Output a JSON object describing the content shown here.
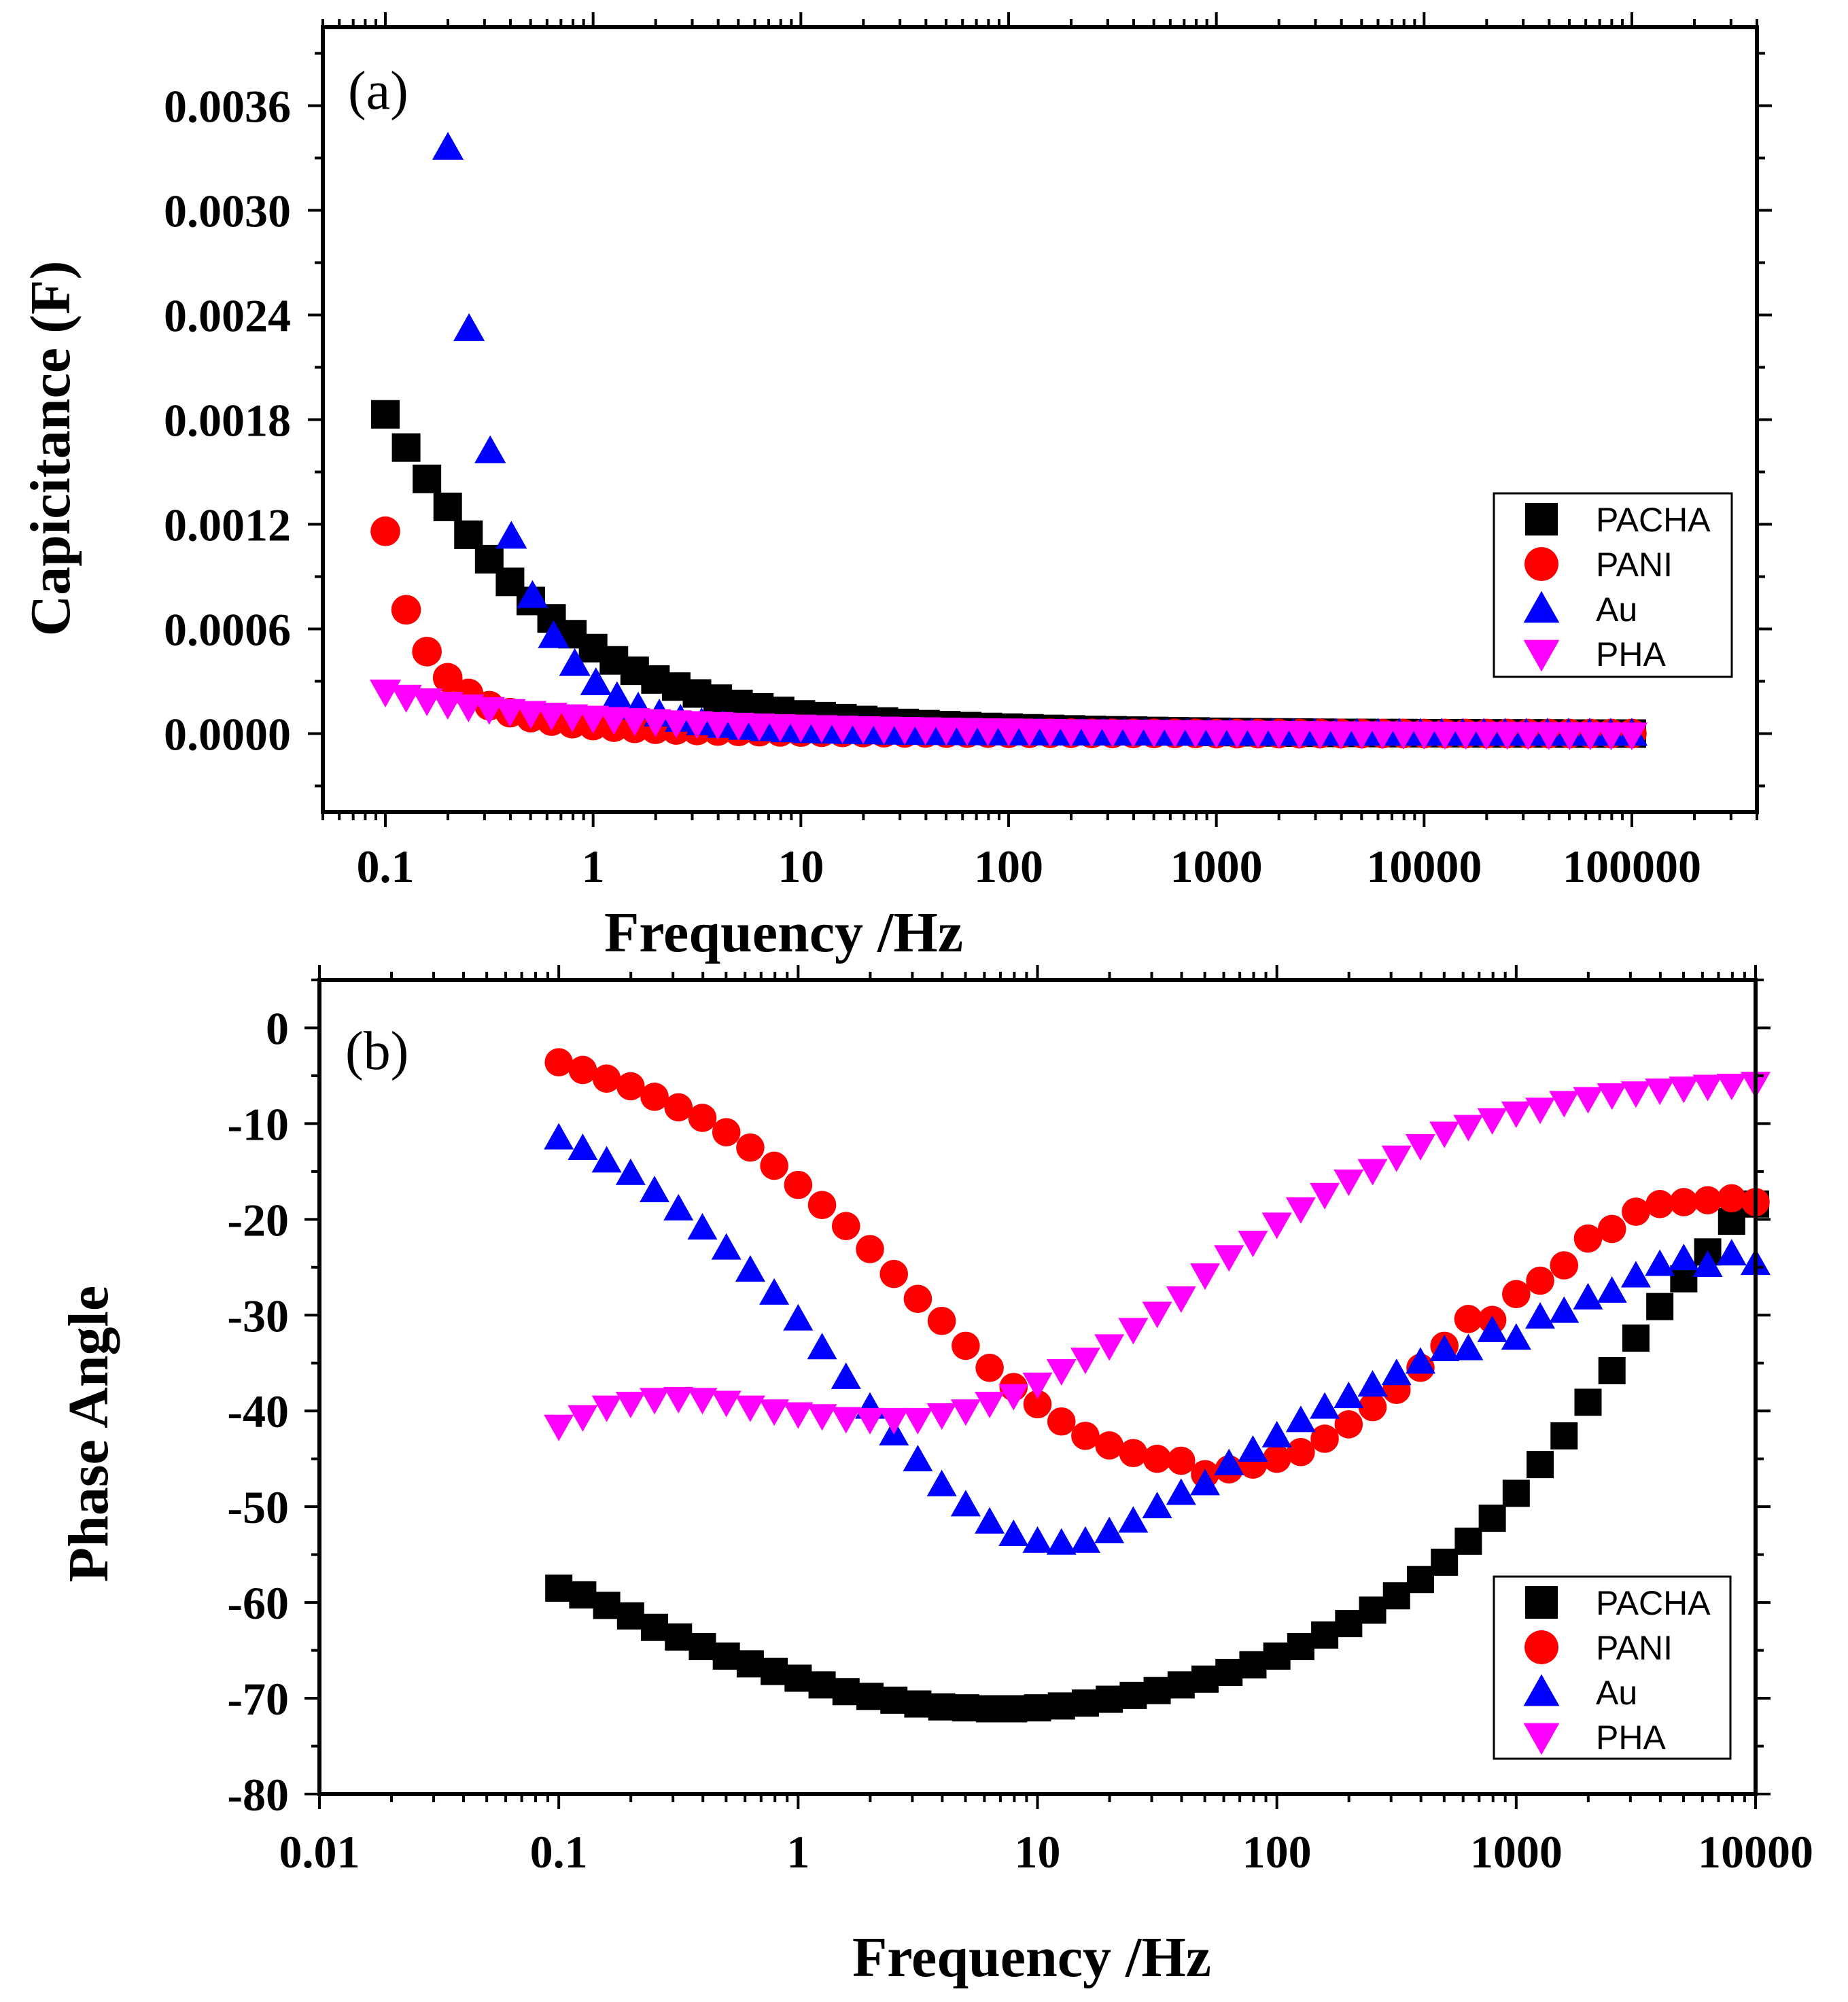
{
  "colors": {
    "PACHA": "#000000",
    "PANI": "#ff0000",
    "Au": "#0000ff",
    "PHA": "#ff00ff"
  },
  "chart_data": [
    {
      "type": "scatter",
      "panel_label": "(a)",
      "xlabel": "Frequency /Hz",
      "ylabel": "Capicitance (F)",
      "xscale": "log",
      "xlim": [
        0.05,
        400000
      ],
      "ylim": [
        -0.00045,
        0.00405
      ],
      "xticks": [
        0.1,
        1,
        10,
        100,
        1000,
        10000,
        100000
      ],
      "xtick_labels": [
        "0.1",
        "1",
        "10",
        "100",
        "1000",
        "10000",
        "100000"
      ],
      "yticks": [
        0,
        0.0006,
        0.0012,
        0.0018,
        0.0024,
        0.003,
        0.0036
      ],
      "ytick_labels": [
        "0.0000",
        "0.0006",
        "0.0012",
        "0.0018",
        "0.0024",
        "0.0030",
        "0.0036"
      ],
      "legend": [
        "PACHA",
        "PANI",
        "Au",
        "PHA"
      ],
      "legend_position": "center-right",
      "series": [
        {
          "name": "PACHA",
          "marker": "square",
          "x_start": 0.1,
          "x_end": 100000,
          "n": 61,
          "values": [
            0.00183,
            0.00164,
            0.00146,
            0.0013,
            0.00114,
            0.001,
            0.00087,
            0.00076,
            0.00066,
            0.00057,
            0.00049,
            0.00042,
            0.00036,
            0.00031,
            0.00027,
            0.00023,
            0.0002,
            0.00017,
            0.00015,
            0.00013,
            0.00011,
            0.0001,
            8.8e-05,
            7.8e-05,
            6.9e-05,
            6.1e-05,
            5.4e-05,
            4.8e-05,
            4.3e-05,
            3.8e-05,
            3.4e-05,
            3e-05,
            2.7e-05,
            2.4e-05,
            2.1e-05,
            1.9e-05,
            1.7e-05,
            1.5e-05,
            1.3e-05,
            1.2e-05,
            1e-05,
            9e-06,
            8e-06,
            7e-06,
            6e-06,
            5e-06,
            4e-06,
            4e-06,
            3e-06,
            3e-06,
            2e-06,
            2e-06,
            2e-06,
            1e-06,
            1e-06,
            1e-06,
            1e-06,
            0,
            0,
            0,
            0
          ]
        },
        {
          "name": "PANI",
          "marker": "circle",
          "x_start": 0.1,
          "x_end": 100000,
          "n": 61,
          "values": [
            0.00116,
            0.00071,
            0.00047,
            0.00032,
            0.00023,
            0.00016,
            0.00012,
            9.2e-05,
            7.2e-05,
            5.7e-05,
            4.6e-05,
            3.7e-05,
            3e-05,
            2.5e-05,
            2.1e-05,
            1.8e-05,
            1.5e-05,
            1.3e-05,
            1.1e-05,
            1e-05,
            9e-06,
            8e-06,
            7e-06,
            6e-06,
            5e-06,
            4e-06,
            4e-06,
            3e-06,
            3e-06,
            3e-06,
            2e-06,
            2e-06,
            2e-06,
            2e-06,
            1e-06,
            1e-06,
            1e-06,
            1e-06,
            1e-06,
            1e-06,
            0,
            0,
            0,
            0,
            0,
            0,
            0,
            0,
            0,
            0,
            0,
            0,
            0,
            0,
            0,
            0,
            0,
            0,
            0,
            0,
            0
          ]
        },
        {
          "name": "Au",
          "marker": "triangle-up",
          "x_start": 0.2,
          "x_end": 100000,
          "n": 57,
          "values": [
            0.00336,
            0.00232,
            0.00162,
            0.00113,
            0.00079,
            0.00056,
            0.0004,
            0.00029,
            0.00021,
            0.00015,
            0.00011,
            8e-05,
            6e-05,
            4.5e-05,
            3.4e-05,
            2.6e-05,
            2e-05,
            1.5e-05,
            1.2e-05,
            1e-05,
            8e-06,
            6e-06,
            5e-06,
            4e-06,
            3e-06,
            3e-06,
            2e-06,
            2e-06,
            2e-06,
            1e-06,
            1e-06,
            1e-06,
            1e-06,
            1e-06,
            0,
            0,
            0,
            0,
            0,
            0,
            0,
            0,
            0,
            0,
            0,
            0,
            0,
            0,
            0,
            0,
            0,
            0,
            0,
            0,
            0,
            0,
            0
          ]
        },
        {
          "name": "PHA",
          "marker": "triangle-down",
          "x_start": 0.1,
          "x_end": 100000,
          "n": 61,
          "values": [
            0.00024,
            0.00021,
            0.00019,
            0.00017,
            0.000155,
            0.00014,
            0.000128,
            0.000117,
            0.000107,
            9.8e-05,
            9e-05,
            8.3e-05,
            7.6e-05,
            7e-05,
            6.4e-05,
            5.9e-05,
            5.4e-05,
            5e-05,
            4.6e-05,
            4.2e-05,
            3.9e-05,
            3.6e-05,
            3.3e-05,
            3e-05,
            2.8e-05,
            2.6e-05,
            2.4e-05,
            2.2e-05,
            2e-05,
            1.8e-05,
            1.7e-05,
            1.5e-05,
            1.4e-05,
            1.3e-05,
            1.2e-05,
            1.1e-05,
            1e-05,
            9e-06,
            8e-06,
            7e-06,
            6e-06,
            5e-06,
            4e-06,
            3e-06,
            2e-06,
            1e-06,
            0,
            0,
            0,
            -1e-06,
            -1e-06,
            -2e-06,
            -2e-06,
            -3e-06,
            -3e-06,
            -4e-06,
            -4e-06,
            -5e-06,
            -5e-06,
            -6e-06,
            -6e-06
          ]
        }
      ]
    },
    {
      "type": "scatter",
      "panel_label": "(b)",
      "xlabel": "Frequency /Hz",
      "ylabel": "Phase Angle",
      "xscale": "log",
      "xlim": [
        0.01,
        10000
      ],
      "ylim": [
        -80,
        5
      ],
      "xticks": [
        0.01,
        0.1,
        1,
        10,
        100,
        1000,
        10000
      ],
      "xtick_labels": [
        "0.01",
        "0.1",
        "1",
        "10",
        "100",
        "1000",
        "10000"
      ],
      "yticks": [
        0,
        -10,
        -20,
        -30,
        -40,
        -50,
        -60,
        -70,
        -80
      ],
      "ytick_labels": [
        "0",
        "-10",
        "-20",
        "-30",
        "-40",
        "-50",
        "-60",
        "-70",
        "-80"
      ],
      "legend": [
        "PACHA",
        "PANI",
        "Au",
        "PHA"
      ],
      "legend_position": "bottom-right",
      "series": [
        {
          "name": "PACHA",
          "marker": "square",
          "x_start": 0.1,
          "x_end": 10000,
          "n": 51,
          "values": [
            -58.5,
            -59.2,
            -60.3,
            -61.4,
            -62.6,
            -63.6,
            -64.6,
            -65.6,
            -66.4,
            -67.2,
            -67.9,
            -68.6,
            -69.3,
            -69.8,
            -70.2,
            -70.6,
            -70.9,
            -71.0,
            -71.1,
            -71.1,
            -71.0,
            -70.8,
            -70.5,
            -70.1,
            -69.7,
            -69.2,
            -68.6,
            -68.0,
            -67.3,
            -66.5,
            -65.6,
            -64.6,
            -63.4,
            -62.2,
            -60.8,
            -59.3,
            -57.6,
            -55.8,
            -53.6,
            -51.2,
            -48.6,
            -45.6,
            -42.6,
            -39.1,
            -35.8,
            -32.4,
            -29.1,
            -26.2,
            -23.4,
            -20.2,
            -18.4
          ]
        },
        {
          "name": "PANI",
          "marker": "circle",
          "x_start": 0.1,
          "x_end": 10000,
          "n": 51,
          "values": [
            -3.6,
            -4.4,
            -5.3,
            -6.1,
            -7.2,
            -8.3,
            -9.4,
            -10.9,
            -12.5,
            -14.4,
            -16.4,
            -18.5,
            -20.7,
            -23.1,
            -25.7,
            -28.3,
            -30.6,
            -33.2,
            -35.5,
            -37.5,
            -39.3,
            -41.1,
            -42.6,
            -43.6,
            -44.4,
            -45.0,
            -45.2,
            -46.6,
            -46.1,
            -45.6,
            -45.0,
            -44.3,
            -42.9,
            -41.4,
            -39.6,
            -37.8,
            -35.5,
            -33.2,
            -30.4,
            -30.5,
            -27.8,
            -26.4,
            -24.8,
            -22.0,
            -21.0,
            -19.2,
            -18.4,
            -18.2,
            -18.0,
            -17.8,
            -18.2
          ]
        },
        {
          "name": "Au",
          "marker": "triangle-up",
          "x_start": 0.1,
          "x_end": 10000,
          "n": 51,
          "values": [
            -11.5,
            -12.6,
            -13.9,
            -15.2,
            -17.0,
            -18.9,
            -20.9,
            -23.0,
            -25.3,
            -27.7,
            -30.4,
            -33.4,
            -36.5,
            -39.6,
            -42.4,
            -45.1,
            -47.7,
            -49.8,
            -51.6,
            -52.9,
            -53.6,
            -53.8,
            -53.6,
            -52.6,
            -51.5,
            -50.0,
            -48.6,
            -47.6,
            -45.5,
            -44.1,
            -42.6,
            -41.0,
            -39.6,
            -38.5,
            -37.3,
            -36.1,
            -34.9,
            -33.6,
            -33.5,
            -31.6,
            -32.4,
            -30.2,
            -29.6,
            -28.2,
            -27.5,
            -25.9,
            -24.7,
            -24.1,
            -24.8,
            -23.6,
            -24.6
          ]
        },
        {
          "name": "PHA",
          "marker": "triangle-down",
          "x_start": 0.1,
          "x_end": 10000,
          "n": 51,
          "values": [
            -41.6,
            -40.6,
            -39.6,
            -39.2,
            -38.8,
            -38.7,
            -38.8,
            -39.1,
            -39.6,
            -40.0,
            -40.3,
            -40.5,
            -40.8,
            -40.9,
            -40.9,
            -40.9,
            -40.4,
            -40.0,
            -39.2,
            -38.4,
            -37.2,
            -35.8,
            -34.6,
            -33.2,
            -31.5,
            -29.8,
            -28.2,
            -25.8,
            -23.9,
            -22.4,
            -20.5,
            -18.9,
            -17.4,
            -16.0,
            -14.9,
            -13.5,
            -12.3,
            -11.0,
            -10.3,
            -9.6,
            -8.9,
            -8.5,
            -7.8,
            -7.4,
            -7.0,
            -6.8,
            -6.5,
            -6.3,
            -6.1,
            -6.0,
            -5.8
          ]
        }
      ]
    }
  ]
}
